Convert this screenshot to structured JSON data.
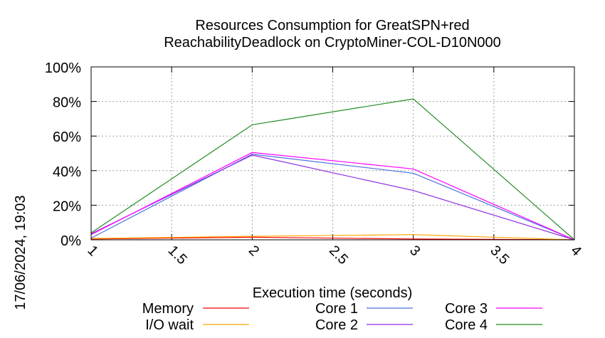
{
  "chart_data": {
    "type": "line",
    "title_line1": "Resources Consumption for GreatSPN+red",
    "title_line2": "ReachabilityDeadlock on CryptoMiner-COL-D10N000",
    "xlabel": "Execution time (seconds)",
    "ylabel": "",
    "side_label": "17/06/2024, 19:03",
    "x": [
      1,
      2,
      3,
      4
    ],
    "xlim": [
      1,
      4
    ],
    "ylim": [
      0,
      100
    ],
    "xticks": [
      1,
      1.5,
      2,
      2.5,
      3,
      3.5,
      4
    ],
    "xtick_labels": [
      "1",
      "1.5",
      "2",
      "2.5",
      "3",
      "3.5",
      "4"
    ],
    "yticks": [
      0,
      20,
      40,
      60,
      80,
      100
    ],
    "ytick_labels": [
      "0%",
      "20%",
      "40%",
      "60%",
      "80%",
      "100%"
    ],
    "grid": true,
    "legend_position": "bottom",
    "series": [
      {
        "name": "Memory",
        "color": "#ff0000",
        "values": [
          0.5,
          1.5,
          0.5,
          0
        ]
      },
      {
        "name": "I/O wait",
        "color": "#ffa500",
        "values": [
          0.8,
          2.0,
          3.0,
          0
        ]
      },
      {
        "name": "Core 1",
        "color": "#4a6fdc",
        "values": [
          1.0,
          49.5,
          38.5,
          0
        ]
      },
      {
        "name": "Core 2",
        "color": "#8b2be2",
        "values": [
          3.5,
          49.0,
          28.5,
          0
        ]
      },
      {
        "name": "Core 3",
        "color": "#ff00ff",
        "values": [
          3.0,
          50.5,
          41.0,
          0
        ]
      },
      {
        "name": "Core 4",
        "color": "#228b22",
        "values": [
          4.0,
          66.5,
          81.5,
          0
        ]
      }
    ]
  }
}
